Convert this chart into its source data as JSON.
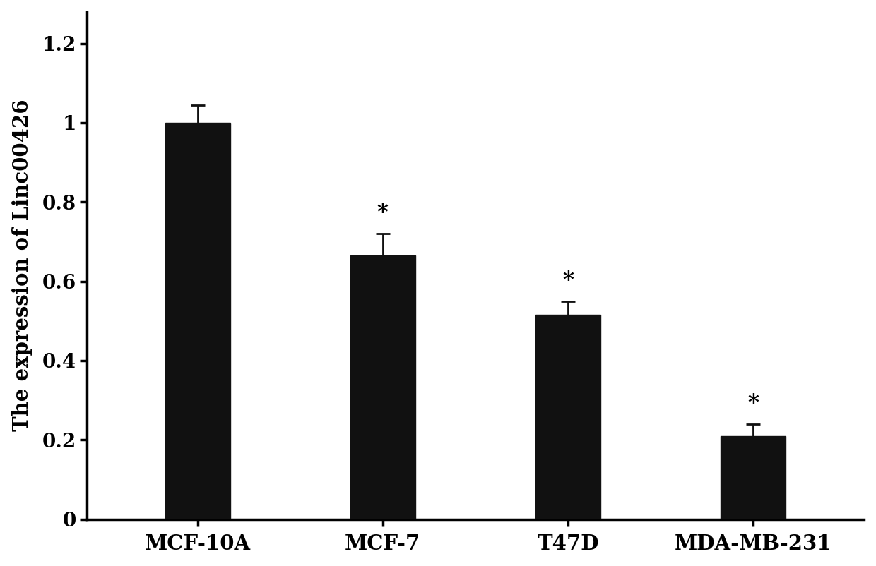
{
  "categories": [
    "MCF-10A",
    "MCF-7",
    "T47D",
    "MDA-MB-231"
  ],
  "values": [
    1.0,
    0.665,
    0.515,
    0.21
  ],
  "errors": [
    0.045,
    0.055,
    0.035,
    0.03
  ],
  "bar_color": "#111111",
  "error_color": "#111111",
  "ylabel": "The expression of Linc00426",
  "ylim": [
    0,
    1.28
  ],
  "yticks": [
    0,
    0.2,
    0.4,
    0.6,
    0.8,
    1.0,
    1.2
  ],
  "yticklabels": [
    "0",
    "0.2",
    "0.4",
    "0.6",
    "0.8",
    "1",
    "1.2"
  ],
  "has_significance": [
    false,
    true,
    true,
    true
  ],
  "background_color": "#ffffff",
  "bar_width": 0.35,
  "ylabel_fontsize": 21,
  "tick_fontsize": 20,
  "xlabel_fontsize": 21,
  "sig_fontsize": 22
}
